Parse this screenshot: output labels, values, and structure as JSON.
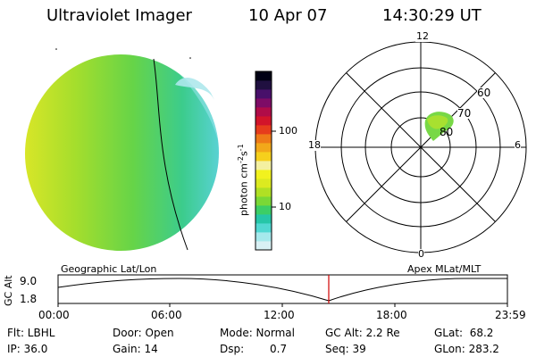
{
  "header": {
    "title": "Ultraviolet Imager",
    "date": "10 Apr 07",
    "time": "14:30:29 UT"
  },
  "colorbar": {
    "unit": "photon cm",
    "unit_exp1": "-2",
    "unit_s": "s",
    "unit_exp2": "-1",
    "tick_100": "100",
    "tick_10": "10",
    "colors": [
      "#d8f0f4",
      "#a6e9ec",
      "#52d8d2",
      "#26c6a8",
      "#3cce66",
      "#7ad836",
      "#b0e024",
      "#dcea20",
      "#f2f21e",
      "#f4f0a0",
      "#f6d01c",
      "#f2a81a",
      "#ee7a18",
      "#e63c1c",
      "#d2142a",
      "#b00c48",
      "#7e0c66",
      "#48106a",
      "#201040",
      "#000014"
    ]
  },
  "polar": {
    "label_top": "12",
    "label_bottom": "0",
    "label_left": "18",
    "label_right": "6",
    "ring_60": "60",
    "ring_70": "70",
    "ring_80": "80"
  },
  "projection": {
    "left": "Geographic Lat/Lon",
    "right": "Apex MLat/MLT"
  },
  "orbit": {
    "ylabel": "GC Alt",
    "ytick_top": "9.0",
    "ytick_bottom": "1.8",
    "xticks": [
      "00:00",
      "06:00",
      "12:00",
      "18:00",
      "23:59"
    ]
  },
  "info": {
    "flt": "Flt: LBHL",
    "ip": "IP: 36.0",
    "door": "Door: Open",
    "gain": "Gain: 14",
    "mode": "Mode: Normal",
    "dsp_label": "Dsp:",
    "dsp_value": "0.7",
    "gcalt": "GC Alt: 2.2 Re",
    "seq": "Seq: 39",
    "glat": "GLat:  68.2",
    "glon": "GLon: 283.2"
  }
}
